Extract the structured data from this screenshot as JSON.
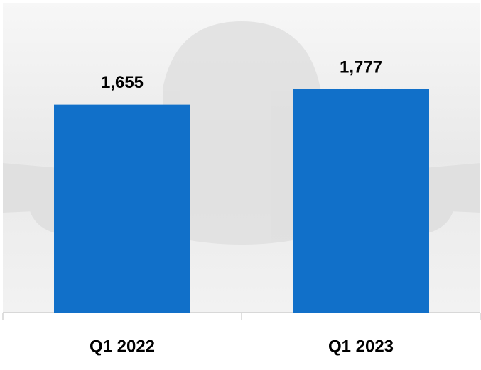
{
  "chart_data": {
    "type": "bar",
    "categories": [
      "Q1 2022",
      "Q1 2023"
    ],
    "values": [
      1655,
      1777
    ],
    "value_labels": [
      "1,655",
      "1,777"
    ],
    "color": "#1170c9"
  }
}
